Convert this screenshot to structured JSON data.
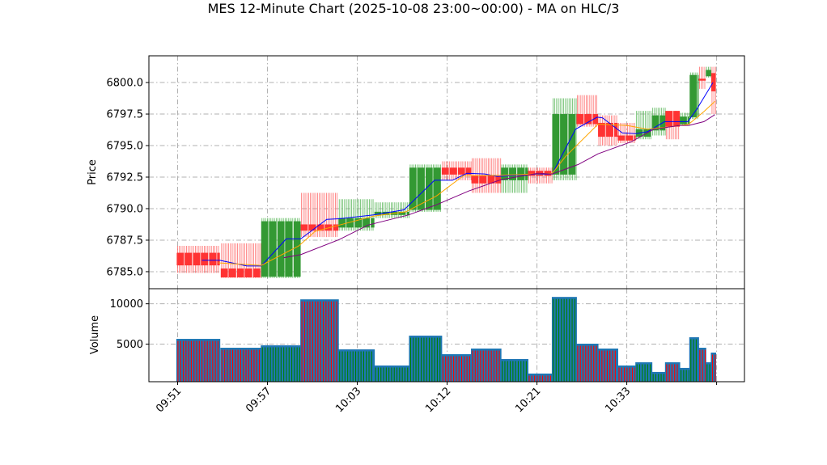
{
  "chart_data": {
    "type": "candlestick",
    "title": "MES 12-Minute Chart (2025-10-08 23:00~00:00) - MA on HLC/3",
    "price_panel": {
      "ylabel": "Price",
      "ylim": [
        6783.65,
        6802.12
      ],
      "yticks": [
        6785.0,
        6787.5,
        6790.0,
        6792.5,
        6795.0,
        6797.5,
        6800.0
      ],
      "ytick_labels": [
        "6785.0",
        "6787.5",
        "6790.0",
        "6792.5",
        "6795.0",
        "6797.5",
        "6800.0"
      ],
      "grid": true
    },
    "volume_panel": {
      "ylabel": "Volume",
      "ylim": [
        340,
        11870
      ],
      "yticks": [
        5000,
        10000
      ],
      "ytick_labels": [
        "5000",
        "10000"
      ],
      "grid": true
    },
    "xaxis": {
      "xlim": [
        -3.2,
        63.1
      ],
      "ticks": [
        0,
        10,
        20,
        30,
        40,
        50,
        60
      ],
      "tick_labels": [
        "09:51",
        "09:57",
        "10:03",
        "10:12",
        "10:21",
        "10:33",
        ""
      ]
    },
    "candle_groups": [
      {
        "x0": -0.1,
        "x1": 4.7,
        "open": 6786.5,
        "high": 6787.05,
        "low": 6784.9,
        "close": 6785.5,
        "volume": 5600
      },
      {
        "x0": 4.8,
        "x1": 9.3,
        "open": 6785.25,
        "high": 6787.25,
        "low": 6784.5,
        "close": 6784.55,
        "volume": 4500
      },
      {
        "x0": 9.3,
        "x1": 13.7,
        "open": 6784.6,
        "high": 6789.25,
        "low": 6784.5,
        "close": 6789.0,
        "volume": 4800
      },
      {
        "x0": 13.7,
        "x1": 17.9,
        "open": 6788.75,
        "high": 6791.25,
        "low": 6787.75,
        "close": 6788.25,
        "volume": 10500
      },
      {
        "x0": 17.9,
        "x1": 21.9,
        "open": 6788.5,
        "high": 6790.75,
        "low": 6788.25,
        "close": 6789.25,
        "volume": 4300
      },
      {
        "x0": 21.9,
        "x1": 25.8,
        "open": 6789.5,
        "high": 6790.5,
        "low": 6789.25,
        "close": 6789.75,
        "volume": 2300
      },
      {
        "x0": 25.8,
        "x1": 29.4,
        "open": 6789.9,
        "high": 6793.5,
        "low": 6789.75,
        "close": 6793.25,
        "volume": 6000
      },
      {
        "x0": 29.4,
        "x1": 32.7,
        "open": 6793.25,
        "high": 6793.75,
        "low": 6792.25,
        "close": 6792.7,
        "volume": 3700
      },
      {
        "x0": 32.7,
        "x1": 36.0,
        "open": 6792.6,
        "high": 6794.0,
        "low": 6791.25,
        "close": 6792.0,
        "volume": 4400
      },
      {
        "x0": 36.0,
        "x1": 39.0,
        "open": 6792.25,
        "high": 6793.5,
        "low": 6791.25,
        "close": 6793.25,
        "volume": 3100
      },
      {
        "x0": 39.0,
        "x1": 41.7,
        "open": 6793.0,
        "high": 6793.25,
        "low": 6792.0,
        "close": 6792.6,
        "volume": 1300
      },
      {
        "x0": 41.7,
        "x1": 44.4,
        "open": 6792.7,
        "high": 6798.75,
        "low": 6792.25,
        "close": 6797.5,
        "volume": 10800
      },
      {
        "x0": 44.4,
        "x1": 46.8,
        "open": 6797.5,
        "high": 6799.0,
        "low": 6796.5,
        "close": 6796.7,
        "volume": 5000
      },
      {
        "x0": 46.8,
        "x1": 49.0,
        "open": 6796.8,
        "high": 6797.4,
        "low": 6795.0,
        "close": 6795.7,
        "volume": 4400
      },
      {
        "x0": 49.0,
        "x1": 51.0,
        "open": 6795.8,
        "high": 6796.8,
        "low": 6795.2,
        "close": 6795.4,
        "volume": 2300
      },
      {
        "x0": 51.0,
        "x1": 52.8,
        "open": 6795.7,
        "high": 6797.75,
        "low": 6795.5,
        "close": 6796.3,
        "volume": 2700
      },
      {
        "x0": 52.8,
        "x1": 54.3,
        "open": 6796.2,
        "high": 6798.0,
        "low": 6795.8,
        "close": 6797.4,
        "volume": 1500
      },
      {
        "x0": 54.3,
        "x1": 55.9,
        "open": 6797.75,
        "high": 6797.75,
        "low": 6795.5,
        "close": 6796.5,
        "volume": 2700
      },
      {
        "x0": 55.9,
        "x1": 57.0,
        "open": 6796.7,
        "high": 6797.6,
        "low": 6796.6,
        "close": 6797.3,
        "volume": 2000
      },
      {
        "x0": 57.0,
        "x1": 58.0,
        "open": 6797.25,
        "high": 6800.8,
        "low": 6797.1,
        "close": 6800.6,
        "volume": 5800
      },
      {
        "x0": 58.0,
        "x1": 58.8,
        "open": 6800.3,
        "high": 6801.25,
        "low": 6799.5,
        "close": 6800.15,
        "volume": 4500
      },
      {
        "x0": 58.8,
        "x1": 59.4,
        "open": 6800.5,
        "high": 6801.25,
        "low": 6800.4,
        "close": 6801.0,
        "volume": 2700
      },
      {
        "x0": 59.4,
        "x1": 59.9,
        "open": 6800.75,
        "high": 6801.25,
        "low": 6797.5,
        "close": 6799.3,
        "volume": 3900
      }
    ],
    "ma_series": [
      {
        "name": "MA fast",
        "color": "#0000ff",
        "x": [
          2.7,
          4.7,
          7.7,
          9.3,
          12.1,
          13.7,
          16.6,
          18.0,
          21.8,
          25.2,
          28.6,
          30.6,
          32.2,
          34.2,
          35.6,
          38.7,
          41.7,
          44.3,
          46.7,
          47.3,
          49.5,
          51.0,
          52.3,
          54.2,
          56.8,
          57.8,
          59.6
        ],
        "y": [
          6785.9,
          6785.9,
          6785.45,
          6785.45,
          6787.6,
          6787.6,
          6789.15,
          6789.2,
          6789.5,
          6789.9,
          6792.25,
          6792.25,
          6792.8,
          6792.75,
          6792.55,
          6792.7,
          6792.75,
          6796.3,
          6797.25,
          6797.2,
          6796.0,
          6795.95,
          6796.1,
          6796.9,
          6796.9,
          6797.9,
          6800.0
        ]
      },
      {
        "name": "MA mid",
        "color": "#ffa500",
        "x": [
          4.5,
          9.3,
          13.5,
          15.3,
          18.0,
          21.8,
          25.4,
          28.8,
          31.8,
          36.0,
          41.7,
          43.2,
          46.8,
          50.0,
          52.3,
          55.0,
          56.9,
          58.6,
          59.8
        ],
        "y": [
          6785.7,
          6785.5,
          6787.05,
          6788.2,
          6788.7,
          6789.4,
          6789.75,
          6791.0,
          6792.6,
          6792.65,
          6792.8,
          6794.15,
          6796.7,
          6796.6,
          6796.3,
          6796.5,
          6796.7,
          6797.7,
          6798.5
        ]
      },
      {
        "name": "MA slow",
        "color": "#800080",
        "x": [
          11.8,
          13.7,
          18.0,
          21.2,
          25.7,
          28.8,
          32.4,
          36.0,
          40.1,
          41.7,
          44.6,
          46.8,
          50.5,
          53.0,
          55.9,
          56.9,
          58.6,
          59.8
        ],
        "y": [
          6786.1,
          6786.35,
          6787.55,
          6788.7,
          6789.5,
          6790.3,
          6791.4,
          6792.3,
          6792.8,
          6792.75,
          6793.5,
          6794.35,
          6795.3,
          6796.3,
          6796.6,
          6796.6,
          6796.9,
          6797.45
        ]
      }
    ],
    "colors": {
      "up": "#339933",
      "down": "#ff3333",
      "up_wick": "#5cb85c",
      "down_wick": "#ff6f6f",
      "volume": "#1f77b4",
      "grid": "#b0b0b0"
    }
  }
}
